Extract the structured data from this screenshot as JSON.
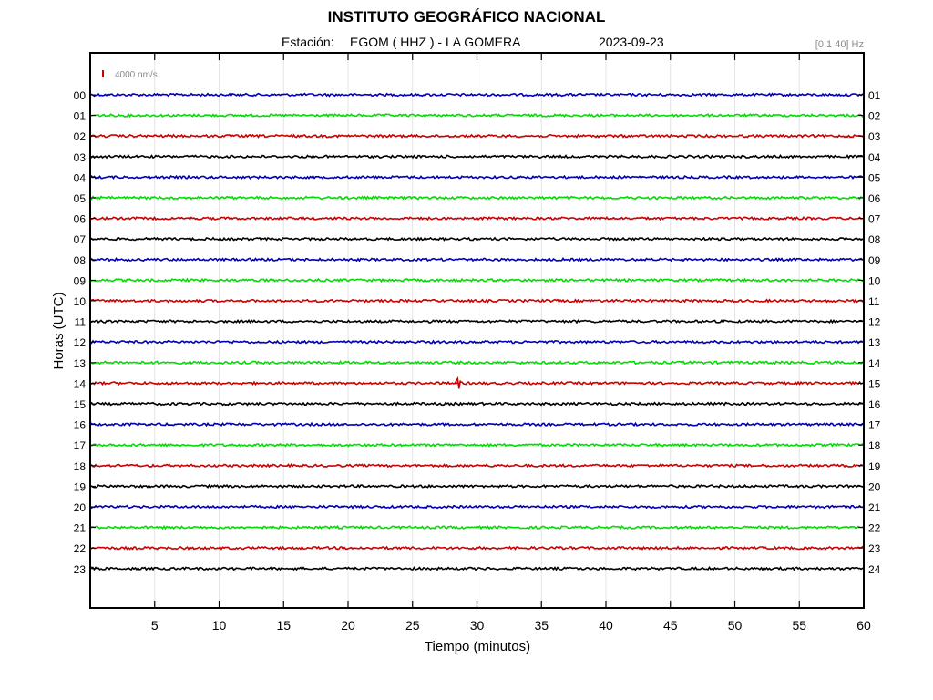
{
  "header": {
    "title": "INSTITUTO GEOGRÁFICO NACIONAL",
    "station_label": "Estación:",
    "station_value": "EGOM ( HHZ ) - LA GOMERA",
    "date": "2023-09-23",
    "filter": "[0.1 40] Hz"
  },
  "chart_data": {
    "type": "line",
    "title": "INSTITUTO GEOGRÁFICO NACIONAL",
    "xlabel": "Tiempo (minutos)",
    "ylabel": "Horas (UTC)",
    "xlim": [
      0,
      60
    ],
    "x_ticks": [
      "5",
      "10",
      "15",
      "20",
      "25",
      "30",
      "35",
      "40",
      "45",
      "50",
      "55",
      "60"
    ],
    "left_labels": [
      "00",
      "01",
      "02",
      "03",
      "04",
      "05",
      "06",
      "07",
      "08",
      "09",
      "10",
      "11",
      "12",
      "13",
      "14",
      "15",
      "16",
      "17",
      "18",
      "19",
      "20",
      "21",
      "22",
      "23"
    ],
    "right_labels": [
      "01",
      "02",
      "03",
      "04",
      "05",
      "06",
      "07",
      "08",
      "09",
      "10",
      "11",
      "12",
      "13",
      "14",
      "15",
      "16",
      "17",
      "18",
      "19",
      "20",
      "21",
      "22",
      "23",
      "24"
    ],
    "scale_label": "4000 nm/s",
    "scale_color": "#cc0000",
    "trace_colors": [
      "#0000b4",
      "#00dd00",
      "#cc0000",
      "#000000"
    ],
    "grid": true,
    "events": [
      {
        "hour": "14",
        "minute": 28.5
      }
    ]
  }
}
